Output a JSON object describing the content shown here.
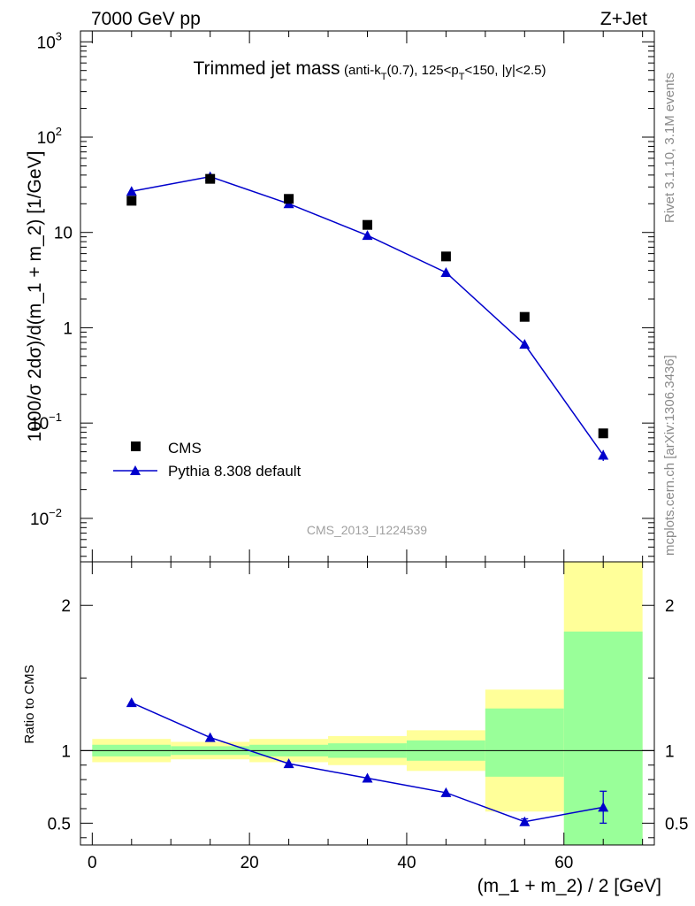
{
  "header": {
    "left": "7000 GeV pp",
    "right": "Z+Jet"
  },
  "plot_title": {
    "main": "Trimmed jet mass",
    "sub": "(anti-k_T(0.7), 125<p_T<150, |y|<2.5)"
  },
  "side_text": {
    "rivet": "Rivet 3.1.10,  3.1M events",
    "mcplots": "mcplots.cern.ch [arXiv:1306.3436]"
  },
  "watermark": "CMS_2013_I1224539",
  "colors": {
    "mc": "#0000cc",
    "data": "#000000",
    "band_yellow": "#ffff99",
    "band_green": "#99ff99"
  },
  "chart_data": [
    {
      "type": "scatter",
      "title": "Trimmed jet mass (anti-k_T(0.7), 125<p_T<150, |y|<2.5)",
      "ylabel": "1000/σ 2dσ)/d(m_1 + m_2) [1/GeV]",
      "xlabel": "",
      "yscale": "log",
      "ylim": [
        0.0035,
        1300
      ],
      "xlim": [
        -1.5,
        71.5
      ],
      "y_ticks": [
        {
          "value": 0.01,
          "label": "10",
          "exp": "−2"
        },
        {
          "value": 0.1,
          "label": "10",
          "exp": "−1"
        },
        {
          "value": 1,
          "label": "1",
          "exp": ""
        },
        {
          "value": 10,
          "label": "10",
          "exp": ""
        },
        {
          "value": 100,
          "label": "10",
          "exp": "2"
        },
        {
          "value": 1000,
          "label": "10",
          "exp": "3"
        }
      ],
      "legend_position": "bottom-left",
      "series": [
        {
          "name": "CMS",
          "marker": "square",
          "x": [
            5,
            15,
            25,
            35,
            45,
            55,
            65
          ],
          "y": [
            21.5,
            36.5,
            22.5,
            12.0,
            5.6,
            1.3,
            0.078
          ]
        },
        {
          "name": "Pythia 8.308 default",
          "marker": "triangle",
          "line": true,
          "x": [
            5,
            15,
            25,
            35,
            45,
            55,
            65
          ],
          "y": [
            27,
            38.5,
            20,
            9.3,
            3.8,
            0.67,
            0.046
          ],
          "yerr_low": [
            0,
            0,
            0,
            0,
            0,
            0,
            0.006
          ],
          "yerr_high": [
            0,
            0,
            0,
            0,
            0,
            0,
            0.006
          ]
        }
      ]
    },
    {
      "type": "line",
      "ylabel": "Ratio to CMS",
      "xlabel": "(m_1 + m_2) / 2 [GeV]",
      "xlim": [
        -1.5,
        71.5
      ],
      "ylim": [
        0.35,
        2.3
      ],
      "x_ticks": [
        0,
        20,
        40,
        60
      ],
      "y_ticks": [
        0.5,
        1,
        2
      ],
      "reference_line": 1,
      "bands": {
        "edges": [
          0,
          10,
          20,
          30,
          40,
          50,
          60,
          70
        ],
        "yellow_low": [
          0.92,
          0.94,
          0.92,
          0.9,
          0.86,
          0.58,
          0.35
        ],
        "yellow_high": [
          1.08,
          1.06,
          1.08,
          1.1,
          1.14,
          1.42,
          2.3
        ],
        "green_low": [
          0.96,
          0.97,
          0.96,
          0.95,
          0.93,
          0.82,
          0.35
        ],
        "green_high": [
          1.04,
          1.03,
          1.04,
          1.05,
          1.07,
          1.29,
          1.82
        ]
      },
      "series": [
        {
          "name": "Pythia 8.308 default",
          "marker": "triangle",
          "x": [
            5,
            15,
            25,
            35,
            45,
            55,
            65
          ],
          "y": [
            1.33,
            1.09,
            0.91,
            0.81,
            0.71,
            0.51,
            0.61
          ],
          "yerr_low": [
            0,
            0,
            0,
            0,
            0,
            0.02,
            0.11
          ],
          "yerr_high": [
            0,
            0,
            0,
            0,
            0,
            0.02,
            0.11
          ]
        }
      ]
    }
  ]
}
